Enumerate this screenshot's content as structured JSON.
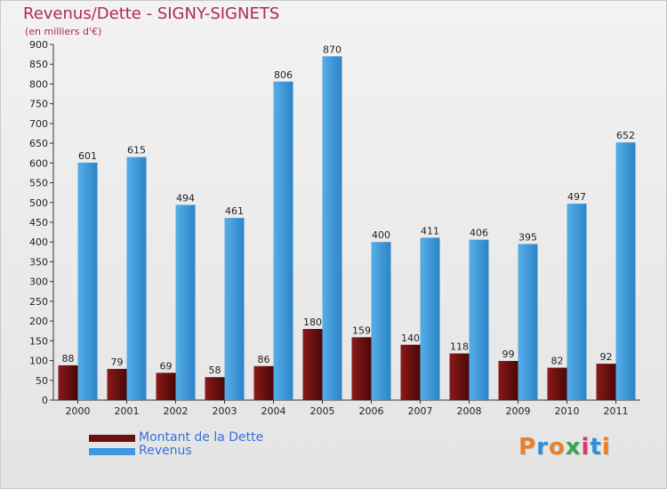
{
  "chart_data": {
    "type": "bar",
    "title": "Revenus/Dette - SIGNY-SIGNETS",
    "subtitle": "(en milliers d'€)",
    "categories": [
      "2000",
      "2001",
      "2002",
      "2003",
      "2004",
      "2005",
      "2006",
      "2007",
      "2008",
      "2009",
      "2010",
      "2011"
    ],
    "series": [
      {
        "name": "Montant de la Dette",
        "color": "#6b0f0f",
        "values": [
          88,
          79,
          69,
          58,
          86,
          180,
          159,
          140,
          118,
          99,
          82,
          92
        ]
      },
      {
        "name": "Revenus",
        "color": "#3d98de",
        "values": [
          601,
          615,
          494,
          461,
          806,
          870,
          400,
          411,
          406,
          395,
          497,
          652
        ]
      }
    ],
    "yticks": [
      0,
      50,
      100,
      150,
      200,
      250,
      300,
      350,
      400,
      450,
      500,
      550,
      600,
      650,
      700,
      750,
      800,
      850,
      900
    ],
    "ylim": [
      0,
      900
    ],
    "grid": false,
    "legend_position": "bottom-left"
  },
  "logo": {
    "text": "Proxiti",
    "colors": [
      "#e8812a",
      "#2f8fd6",
      "#e8812a",
      "#3aa64a",
      "#d63a6a",
      "#2f8fd6",
      "#e8812a"
    ]
  }
}
